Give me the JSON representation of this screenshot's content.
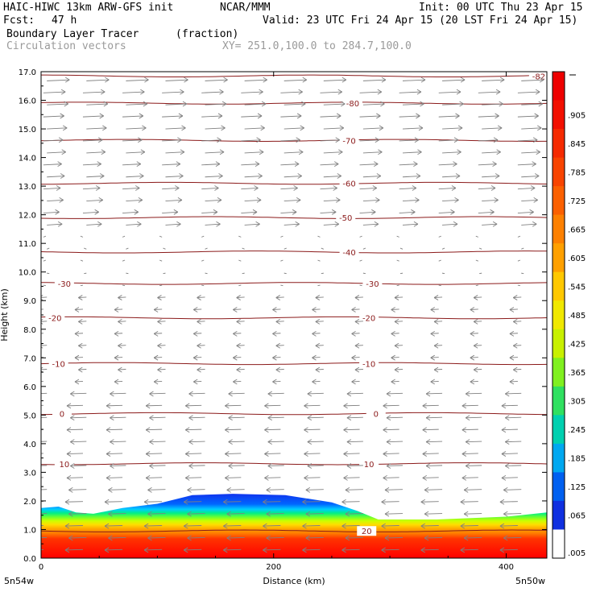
{
  "header": {
    "model": "HAIC-HIWC 13km ARW-GFS init",
    "org": "NCAR/MMM",
    "init": "Init: 00 UTC Thu 23 Apr 15",
    "fcst_label": "Fcst:",
    "fcst_value": "47 h",
    "valid": "Valid: 23 UTC Fri 24 Apr 15 (20 LST Fri 24 Apr 15)",
    "field1": "Boundary Layer Tracer",
    "field1_units": "(fraction)",
    "field2": "Circulation vectors",
    "xy": "XY= 251.0,100.0 to 284.7,100.0"
  },
  "chart_data": {
    "type": "cross-section",
    "ylabel": "Height (km)",
    "xlabel": "Distance (km)",
    "xlim": [
      0,
      435
    ],
    "ylim": [
      0,
      17
    ],
    "x_ticks": [
      "0",
      "200",
      "400"
    ],
    "x_tick_values": [
      0,
      200,
      400
    ],
    "y_ticks": [
      "0.0",
      "1.0",
      "2.0",
      "3.0",
      "4.0",
      "5.0",
      "6.0",
      "7.0",
      "8.0",
      "9.0",
      "10.0",
      "11.0",
      "12.0",
      "13.0",
      "14.0",
      "15.0",
      "16.0",
      "17.0"
    ],
    "x_endpoints": {
      "left": "5n54w",
      "right": "5n50w"
    },
    "temperature_contours": [
      {
        "label": "20",
        "height_km": 0.95,
        "label_x_km": [
          280
        ]
      },
      {
        "label": "10",
        "height_km": 3.3,
        "label_x_km": [
          20,
          282
        ]
      },
      {
        "label": "0",
        "height_km": 5.05,
        "label_x_km": [
          18,
          288
        ]
      },
      {
        "label": "-10",
        "height_km": 6.8,
        "label_x_km": [
          15,
          282
        ]
      },
      {
        "label": "-20",
        "height_km": 8.4,
        "label_x_km": [
          12,
          282
        ]
      },
      {
        "label": "-30",
        "height_km": 9.6,
        "label_x_km": [
          20,
          285
        ]
      },
      {
        "label": "-40",
        "height_km": 10.7,
        "label_x_km": [
          265
        ]
      },
      {
        "label": "-50",
        "height_km": 11.9,
        "label_x_km": [
          262
        ]
      },
      {
        "label": "-60",
        "height_km": 13.1,
        "label_x_km": [
          265
        ]
      },
      {
        "label": "-70",
        "height_km": 14.6,
        "label_x_km": [
          265
        ]
      },
      {
        "label": "-80",
        "height_km": 15.9,
        "label_x_km": [
          268
        ]
      },
      {
        "label": "-82",
        "height_km": 16.85,
        "label_x_km": [
          428
        ]
      }
    ],
    "tracer_top_profile": [
      {
        "x": 0,
        "z": 1.75
      },
      {
        "x": 15,
        "z": 1.8
      },
      {
        "x": 30,
        "z": 1.6
      },
      {
        "x": 45,
        "z": 1.55
      },
      {
        "x": 70,
        "z": 1.75
      },
      {
        "x": 100,
        "z": 1.9
      },
      {
        "x": 130,
        "z": 2.2
      },
      {
        "x": 165,
        "z": 2.25
      },
      {
        "x": 210,
        "z": 2.2
      },
      {
        "x": 250,
        "z": 1.95
      },
      {
        "x": 272,
        "z": 1.65
      },
      {
        "x": 290,
        "z": 1.35
      },
      {
        "x": 340,
        "z": 1.35
      },
      {
        "x": 400,
        "z": 1.45
      },
      {
        "x": 435,
        "z": 1.6
      }
    ],
    "colorbar": {
      "labels": [
        ".905",
        ".845",
        ".785",
        ".725",
        ".665",
        ".605",
        ".545",
        ".485",
        ".425",
        ".365",
        ".305",
        ".245",
        ".185",
        ".125",
        ".065",
        ".005"
      ],
      "low_color": "#ffffff",
      "high_color": "#ee0000"
    },
    "vectors": {
      "upper_direction": "east",
      "lower_direction": "west",
      "turn_height_km": 10.0
    }
  },
  "colors": {
    "contour": "#8b1a1a",
    "vector": "#808080"
  }
}
